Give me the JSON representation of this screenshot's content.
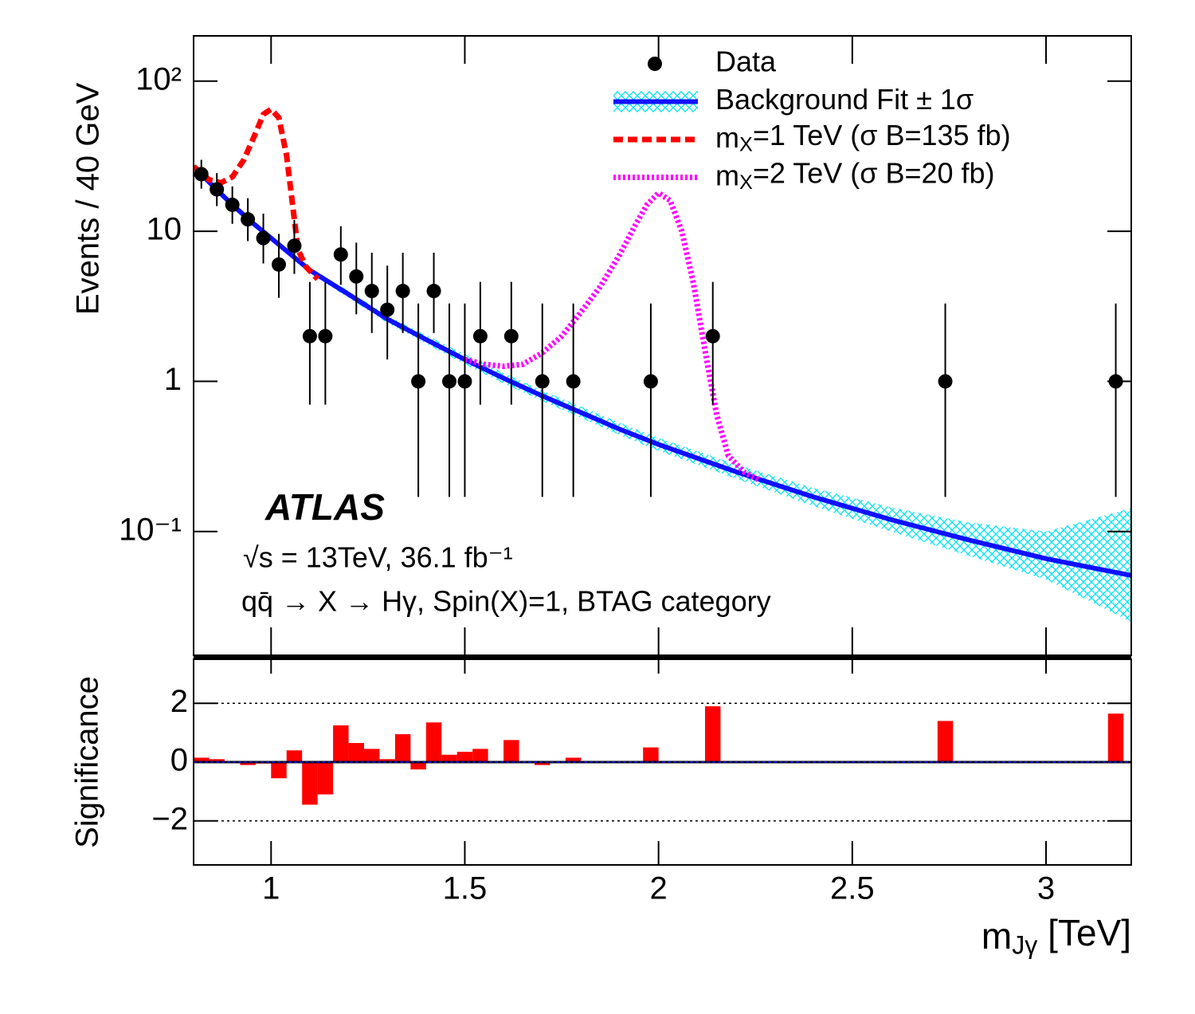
{
  "chart_data": [
    {
      "type": "line",
      "log_y": true,
      "xlim": [
        0.8,
        3.22
      ],
      "ylim": [
        0.015,
        200
      ],
      "yticks": [
        {
          "value": 0.1,
          "label": "10⁻¹"
        },
        1,
        10,
        {
          "value": 100,
          "label": "10²"
        }
      ],
      "ylabel": "Events / 40 GeV",
      "annotations": [
        "ATLAS",
        "√s = 13TeV, 36.1 fb⁻¹",
        "qq̄ → X → Hγ, Spin(X)=1, BTAG category"
      ],
      "series": [
        {
          "name": "Data",
          "color": "#000000",
          "x": [
            0.82,
            0.86,
            0.9,
            0.94,
            0.98,
            1.02,
            1.06,
            1.1,
            1.14,
            1.18,
            1.22,
            1.26,
            1.3,
            1.34,
            1.38,
            1.42,
            1.46,
            1.5,
            1.54,
            1.62,
            1.7,
            1.78,
            1.98,
            2.14,
            2.74,
            3.18
          ],
          "values": [
            24,
            19,
            15,
            12,
            9,
            6,
            8,
            2,
            2,
            7,
            5,
            4,
            3,
            4,
            1,
            4,
            1,
            1,
            2,
            2,
            1,
            1,
            1,
            2,
            1,
            1
          ],
          "err_low": [
            4.8,
            4.3,
            3.8,
            3.4,
            2.9,
            2.4,
            2.8,
            1.3,
            1.3,
            2.6,
            2.2,
            1.9,
            1.6,
            1.9,
            0.83,
            1.9,
            0.83,
            0.83,
            1.3,
            1.3,
            0.83,
            0.83,
            0.83,
            1.3,
            0.83,
            0.83
          ],
          "err_high": [
            5.9,
            5.4,
            4.9,
            4.6,
            4.1,
            3.6,
            3.9,
            2.6,
            2.6,
            3.8,
            3.4,
            3.2,
            2.9,
            3.2,
            2.3,
            3.2,
            2.3,
            2.3,
            2.6,
            2.6,
            2.3,
            2.3,
            2.3,
            2.6,
            2.3,
            2.3
          ]
        },
        {
          "name": "Background Fit ± 1σ",
          "color": "#1010ff",
          "band_color": "#00e5ee",
          "x": [
            0.8,
            0.85,
            0.9,
            0.95,
            1.0,
            1.1,
            1.2,
            1.3,
            1.4,
            1.5,
            1.6,
            1.7,
            1.8,
            1.9,
            2.0,
            2.2,
            2.4,
            2.6,
            2.8,
            3.0,
            3.22
          ],
          "values": [
            27,
            20,
            15,
            11.5,
            9,
            5.5,
            3.8,
            2.6,
            1.9,
            1.4,
            1.05,
            0.8,
            0.62,
            0.48,
            0.38,
            0.25,
            0.17,
            0.12,
            0.088,
            0.066,
            0.051
          ],
          "band_low": [
            26,
            19.4,
            14.5,
            11.1,
            8.7,
            5.25,
            3.6,
            2.45,
            1.78,
            1.3,
            0.97,
            0.74,
            0.57,
            0.44,
            0.345,
            0.225,
            0.148,
            0.1,
            0.069,
            0.048,
            0.025
          ],
          "band_high": [
            28,
            20.6,
            15.5,
            11.9,
            9.3,
            5.75,
            4.0,
            2.75,
            2.03,
            1.52,
            1.14,
            0.87,
            0.68,
            0.53,
            0.42,
            0.28,
            0.195,
            0.145,
            0.115,
            0.1,
            0.143
          ]
        },
        {
          "name": [
            {
              "text": "m"
            },
            {
              "text": "X",
              "sub": true
            },
            {
              "text": "=1 TeV (σ B=135 fb)"
            }
          ],
          "color": "#ff0000",
          "style": "dashed",
          "x": [
            0.8,
            0.84,
            0.87,
            0.9,
            0.93,
            0.96,
            0.98,
            1.0,
            1.02,
            1.04,
            1.06,
            1.07,
            1.09,
            1.12
          ],
          "values": [
            27,
            22,
            21,
            23,
            30,
            45,
            60,
            65,
            57,
            32,
            12,
            7.5,
            5.8,
            4.8
          ]
        },
        {
          "name": [
            {
              "text": "m"
            },
            {
              "text": "X",
              "sub": true
            },
            {
              "text": "=2 TeV (σ B=20 fb)"
            }
          ],
          "color": "#ff00ff",
          "style": "dotted",
          "x": [
            1.5,
            1.55,
            1.6,
            1.65,
            1.7,
            1.75,
            1.8,
            1.85,
            1.9,
            1.94,
            1.97,
            2.0,
            2.03,
            2.06,
            2.09,
            2.12,
            2.15,
            2.18,
            2.22,
            2.26
          ],
          "values": [
            1.4,
            1.3,
            1.26,
            1.3,
            1.55,
            2.0,
            2.9,
            4.3,
            7.0,
            11,
            15,
            18,
            16,
            10,
            4.5,
            1.6,
            0.6,
            0.32,
            0.25,
            0.22
          ]
        }
      ]
    },
    {
      "type": "bar",
      "color": "#ff0000",
      "xlim": [
        0.8,
        3.22
      ],
      "xticks": [
        1,
        1.5,
        2,
        2.5,
        3
      ],
      "ylim": [
        -3.5,
        3.5
      ],
      "yticks": [
        {
          "value": -2,
          "label": "−2"
        },
        0,
        2
      ],
      "grid": "dotted",
      "ylabel": "Significance",
      "xlabel": [
        {
          "text": "m"
        },
        {
          "text": "Jγ",
          "sub": true
        },
        {
          "text": " [TeV]"
        }
      ],
      "x_low": [
        0.8,
        0.84,
        0.92,
        0.96,
        1.0,
        1.04,
        1.08,
        1.12,
        1.16,
        1.2,
        1.24,
        1.28,
        1.32,
        1.36,
        1.4,
        1.44,
        1.48,
        1.52,
        1.6,
        1.68,
        1.76,
        1.96,
        2.12,
        2.72,
        3.16
      ],
      "x_high": [
        0.84,
        0.88,
        0.96,
        1.0,
        1.04,
        1.08,
        1.12,
        1.16,
        1.2,
        1.24,
        1.28,
        1.32,
        1.36,
        1.4,
        1.44,
        1.48,
        1.52,
        1.56,
        1.64,
        1.72,
        1.8,
        2.0,
        2.16,
        2.76,
        3.2
      ],
      "values": [
        0.15,
        0.1,
        -0.1,
        -0.05,
        -0.55,
        0.4,
        -1.45,
        -1.1,
        1.25,
        0.65,
        0.45,
        0.1,
        0.95,
        -0.25,
        1.35,
        0.25,
        0.35,
        0.45,
        0.75,
        -0.1,
        0.15,
        0.5,
        1.9,
        1.4,
        1.65
      ]
    }
  ]
}
